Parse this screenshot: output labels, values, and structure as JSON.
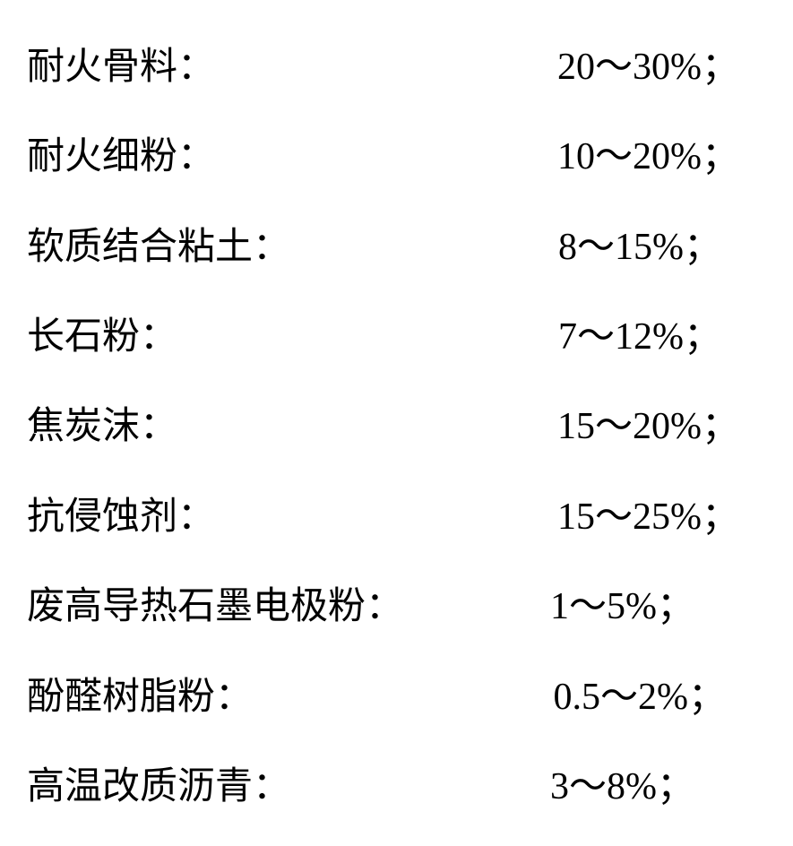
{
  "rows": [
    {
      "label": "耐火骨料：",
      "value": "20～30%；",
      "value_padding_right": "30px"
    },
    {
      "label": "耐火细粉：",
      "value": "10～20%；",
      "value_padding_right": "30px"
    },
    {
      "label": "软质结合粘土：",
      "value": "8～15%；",
      "value_padding_right": "50px"
    },
    {
      "label": "长石粉：",
      "value": "7～12%；",
      "value_padding_right": "50px"
    },
    {
      "label": "焦炭沫：",
      "value": "15～20%；",
      "value_padding_right": "30px"
    },
    {
      "label": "抗侵蚀剂：",
      "value": "15～25%；",
      "value_padding_right": "30px"
    },
    {
      "label": "废高导热石墨电极粉：",
      "value": "1～5%；",
      "value_padding_right": "80px"
    },
    {
      "label": "酚醛树脂粉：",
      "value": "0.5～2%；",
      "value_padding_right": "45px"
    },
    {
      "label": "高温改质沥青：",
      "value": "3～8%；",
      "value_padding_right": "80px"
    }
  ],
  "styling": {
    "font_size": 42,
    "text_color": "#000000",
    "background_color": "#ffffff",
    "font_family_label": "SimSun",
    "font_family_value": "Times New Roman"
  }
}
